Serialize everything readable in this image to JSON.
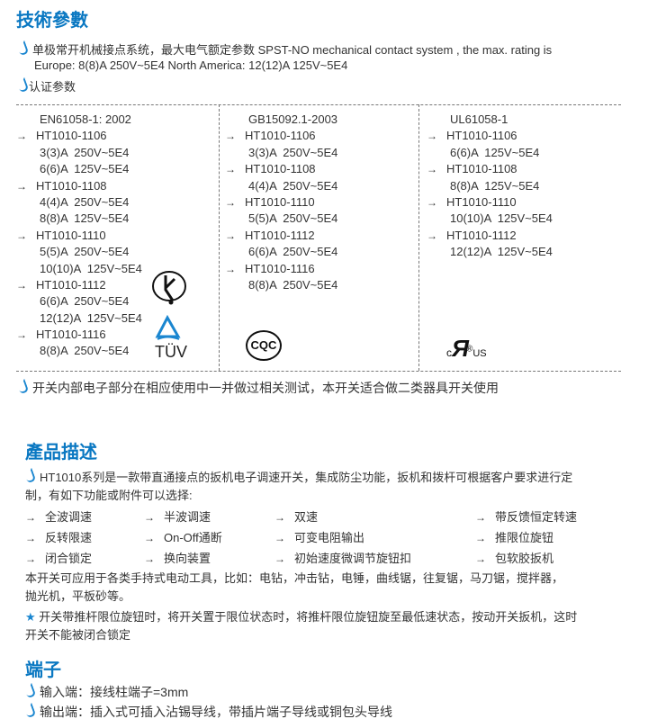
{
  "section1": {
    "title": "技術參數",
    "line1": "单极常开机械接点系统，最大电气额定参数 SPST-NO mechanical contact system , the max. rating is",
    "line2": "Europe: 8(8)A  250V~5E4     North America: 12(12)A  125V~5E4",
    "cert_label": "认证参数",
    "columns": [
      {
        "standard": "EN61058-1: 2002",
        "logo": "TÜV",
        "items": [
          {
            "model": "HT1010-1106",
            "ratings": [
              "3(3)A  250V~5E4",
              "6(6)A  125V~5E4"
            ]
          },
          {
            "model": "HT1010-1108",
            "ratings": [
              "4(4)A  250V~5E4",
              "8(8)A  125V~5E4"
            ]
          },
          {
            "model": "HT1010-1110",
            "ratings": [
              "5(5)A  250V~5E4",
              "10(10)A  125V~5E4"
            ]
          },
          {
            "model": "HT1010-1112",
            "ratings": [
              "6(6)A  250V~5E4",
              "12(12)A  125V~5E4"
            ]
          },
          {
            "model": "HT1010-1116",
            "ratings": [
              "8(8)A  250V~5E4"
            ]
          }
        ]
      },
      {
        "standard": "GB15092.1-2003",
        "logo": "CQC",
        "items": [
          {
            "model": "HT1010-1106",
            "ratings": [
              "3(3)A  250V~5E4"
            ]
          },
          {
            "model": "HT1010-1108",
            "ratings": [
              "4(4)A  250V~5E4"
            ]
          },
          {
            "model": "HT1010-1110",
            "ratings": [
              "5(5)A  250V~5E4"
            ]
          },
          {
            "model": "HT1010-1112",
            "ratings": [
              "6(6)A  250V~5E4"
            ]
          },
          {
            "model": "HT1010-1116",
            "ratings": [
              "8(8)A  250V~5E4"
            ]
          }
        ]
      },
      {
        "standard": "UL61058-1",
        "logo": "cULus",
        "items": [
          {
            "model": "HT1010-1106",
            "ratings": [
              "6(6)A  125V~5E4"
            ]
          },
          {
            "model": "HT1010-1108",
            "ratings": [
              "8(8)A  125V~5E4"
            ]
          },
          {
            "model": "HT1010-1110",
            "ratings": [
              "10(10)A  125V~5E4"
            ]
          },
          {
            "model": "HT1010-1112",
            "ratings": [
              "12(12)A  125V~5E4"
            ]
          }
        ]
      }
    ],
    "note": "开关内部电子部分在相应使用中一并做过相关测试，本开关适合做二类器具开关使用"
  },
  "section2": {
    "title": "產品描述",
    "desc1": "HT1010系列是一款带直通接点的扳机电子调速开关，集成防尘功能，扳机和拨杆可根据客户要求进行定",
    "desc2": "制，有如下功能或附件可以选择:",
    "features": [
      [
        "全波调速",
        "半波调速",
        "双速",
        "带反馈恒定转速"
      ],
      [
        "反转限速",
        "On-Off通断",
        "可变电阻输出",
        "推限位旋钮"
      ],
      [
        "闭合锁定",
        "换向装置",
        "初始速度微调节旋钮扣",
        "包软胶扳机"
      ]
    ],
    "app1": "本开关可应用于各类手持式电动工具，比如：电钻，冲击钻，电锤，曲线锯，往复锯，马刀锯，搅拌器，",
    "app2": "抛光机，平板砂等。",
    "star1": "开关带推杆限位旋钮时，将开关置于限位状态时，将推杆限位旋钮旋至最低速状态，按动开关扳机，这时",
    "star2": "开关不能被闭合锁定"
  },
  "section3": {
    "title": "端子",
    "input": "输入端：接线柱端子=3mm",
    "output": "输出端：插入式可插入沾锡导线，带插片端子导线或铜包头导线"
  },
  "colors": {
    "heading": "#0a78c2",
    "bullet": "#1a86d0"
  }
}
